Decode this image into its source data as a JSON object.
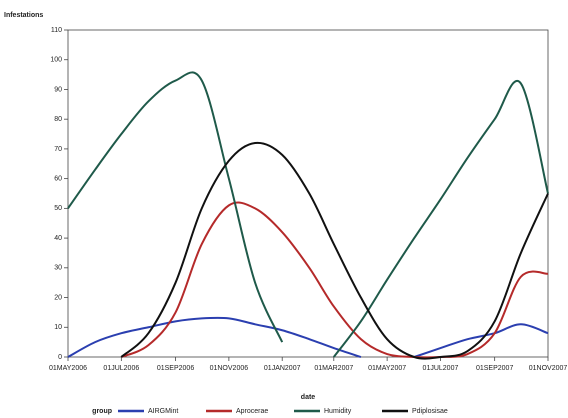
{
  "chart_data": {
    "type": "line",
    "y_label": "Infestations",
    "x_label": "date",
    "legend_title": "group",
    "x": [
      "2006-05-01",
      "2006-06-01",
      "2006-07-01",
      "2006-08-01",
      "2006-09-01",
      "2006-10-01",
      "2006-11-01",
      "2006-12-01",
      "2007-01-01",
      "2007-02-01",
      "2007-03-01",
      "2007-04-01",
      "2007-05-01",
      "2007-06-01",
      "2007-07-01",
      "2007-08-01",
      "2007-09-01",
      "2007-10-01",
      "2007-11-01"
    ],
    "series": [
      {
        "name": "AIRGMint",
        "color": "#2b3fb0",
        "values": [
          0,
          5,
          8,
          10,
          12,
          13,
          13,
          11,
          9,
          6,
          3,
          0,
          null,
          0,
          3,
          6,
          8,
          11,
          8
        ]
      },
      {
        "name": "Aprocerae",
        "color": "#b52a2a",
        "values": [
          null,
          null,
          0,
          4,
          15,
          38,
          51,
          50,
          42,
          30,
          17,
          6,
          1,
          0,
          0,
          1,
          8,
          27,
          28
        ]
      },
      {
        "name": "Humidity",
        "color": "#1f5a4a",
        "values": [
          50,
          63,
          75,
          86,
          93,
          93,
          60,
          25,
          5,
          null,
          0,
          12,
          26,
          40,
          53,
          67,
          80,
          92,
          55
        ]
      },
      {
        "name": "Pdiplosisae",
        "color": "#111111",
        "values": [
          null,
          null,
          0,
          8,
          25,
          50,
          66,
          72,
          68,
          55,
          38,
          20,
          6,
          0,
          0,
          2,
          12,
          35,
          55
        ]
      }
    ],
    "xlim": [
      "2006-05-01",
      "2007-11-01"
    ],
    "xticks": [
      {
        "value": "2006-05-01",
        "label": "01MAY2006"
      },
      {
        "value": "2006-07-01",
        "label": "01JUL2006"
      },
      {
        "value": "2006-09-01",
        "label": "01SEP2006"
      },
      {
        "value": "2006-11-01",
        "label": "01NOV2006"
      },
      {
        "value": "2007-01-01",
        "label": "01JAN2007"
      },
      {
        "value": "2007-03-01",
        "label": "01MAR2007"
      },
      {
        "value": "2007-05-01",
        "label": "01MAY2007"
      },
      {
        "value": "2007-07-01",
        "label": "01JUL2007"
      },
      {
        "value": "2007-09-01",
        "label": "01SEP2007"
      },
      {
        "value": "2007-11-01",
        "label": "01NOV2007"
      }
    ],
    "ylim": [
      0,
      110
    ],
    "yticks": [
      0,
      10,
      20,
      30,
      40,
      50,
      60,
      70,
      80,
      90,
      100,
      110
    ]
  }
}
